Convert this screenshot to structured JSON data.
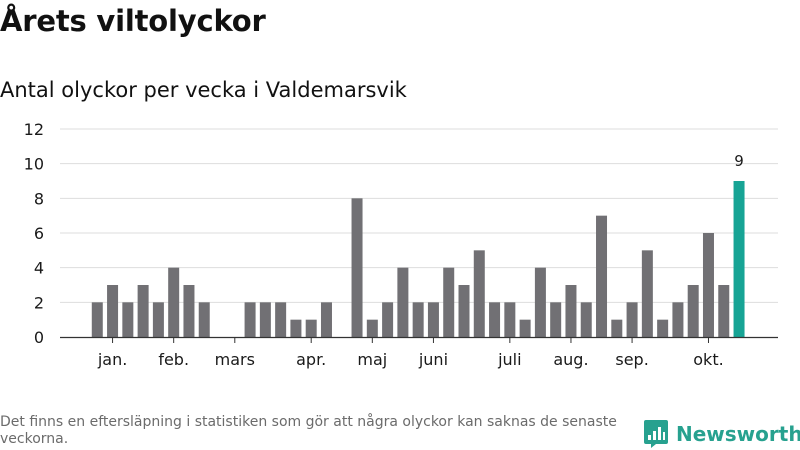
{
  "header": {
    "title": "Årets viltolyckor",
    "subtitle": "Antal olyckor per vecka i Valdemarsvik"
  },
  "footer": {
    "note": "Det finns en eftersläpning i statistiken som gör att några olyckor kan saknas de senaste veckorna.",
    "brand": "Newsworthy"
  },
  "colors": {
    "bar": "#717074",
    "highlight": "#17a495",
    "brand": "#27a18f",
    "grid": "#dddddd",
    "axis": "#333333"
  },
  "chart_data": {
    "type": "bar",
    "title": "Årets viltolyckor",
    "subtitle": "Antal olyckor per vecka i Valdemarsvik",
    "xlabel": "",
    "ylabel": "",
    "ylim": [
      0,
      12
    ],
    "yticks": [
      0,
      2,
      4,
      6,
      8,
      10,
      12
    ],
    "grid": true,
    "x": [
      1,
      2,
      3,
      4,
      5,
      6,
      7,
      8,
      9,
      10,
      11,
      12,
      13,
      14,
      15,
      16,
      17,
      18,
      19,
      20,
      21,
      22,
      23,
      24,
      25,
      26,
      27,
      28,
      29,
      30,
      31,
      32,
      33,
      34,
      35,
      36,
      37,
      38,
      39,
      40,
      41,
      42,
      43,
      44
    ],
    "values": [
      0,
      2,
      3,
      2,
      3,
      2,
      4,
      3,
      2,
      0,
      0,
      2,
      2,
      2,
      1,
      1,
      2,
      0,
      8,
      1,
      2,
      4,
      2,
      2,
      4,
      3,
      5,
      2,
      2,
      1,
      4,
      2,
      3,
      2,
      7,
      1,
      2,
      5,
      1,
      2,
      3,
      6,
      3,
      9
    ],
    "x_tick_labels": [
      {
        "label": "jan.",
        "x": 3
      },
      {
        "label": "feb.",
        "x": 7
      },
      {
        "label": "mars",
        "x": 11
      },
      {
        "label": "apr.",
        "x": 16
      },
      {
        "label": "maj",
        "x": 20
      },
      {
        "label": "juni",
        "x": 24
      },
      {
        "label": "juli",
        "x": 29
      },
      {
        "label": "aug.",
        "x": 33
      },
      {
        "label": "sep.",
        "x": 37
      },
      {
        "label": "okt.",
        "x": 42
      }
    ],
    "highlight_index": 43,
    "data_labels": [
      {
        "index": 43,
        "text": "9"
      }
    ]
  }
}
